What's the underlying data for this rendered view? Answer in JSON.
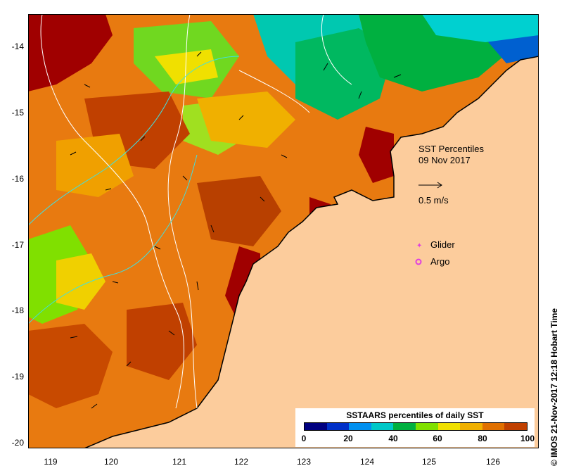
{
  "map": {
    "title": "SST Percentiles",
    "date": "09 Nov 2017",
    "current_scale_label": "0.5 m/s",
    "legend": [
      {
        "label": "Glider",
        "color": "#e040e0",
        "symbol": "star"
      },
      {
        "label": "Argo",
        "color": "#e040e0",
        "symbol": "circle"
      }
    ],
    "credit": "© IMOS 21-Nov-2017 12:18 Hobart Time",
    "y_axis": {
      "ticks": [
        "-14",
        "-15",
        "-16",
        "-17",
        "-18",
        "-19",
        "-20"
      ],
      "range": [
        -20.1,
        -13.5
      ]
    },
    "x_axis": {
      "ticks": [
        "119",
        "120",
        "121",
        "122",
        "123",
        "124",
        "125",
        "126"
      ],
      "range": [
        118.65,
        126.7
      ]
    },
    "colorbar": {
      "title": "SSTAARS percentiles of daily SST",
      "labels": [
        "0",
        "20",
        "40",
        "60",
        "80",
        "100"
      ],
      "colors": [
        "#000080",
        "#0030c8",
        "#0090f0",
        "#00c8c8",
        "#00b040",
        "#80e000",
        "#f0e000",
        "#f0b000",
        "#e07000",
        "#c04000",
        "#a00000"
      ]
    },
    "land_color": "#fccc9c"
  }
}
